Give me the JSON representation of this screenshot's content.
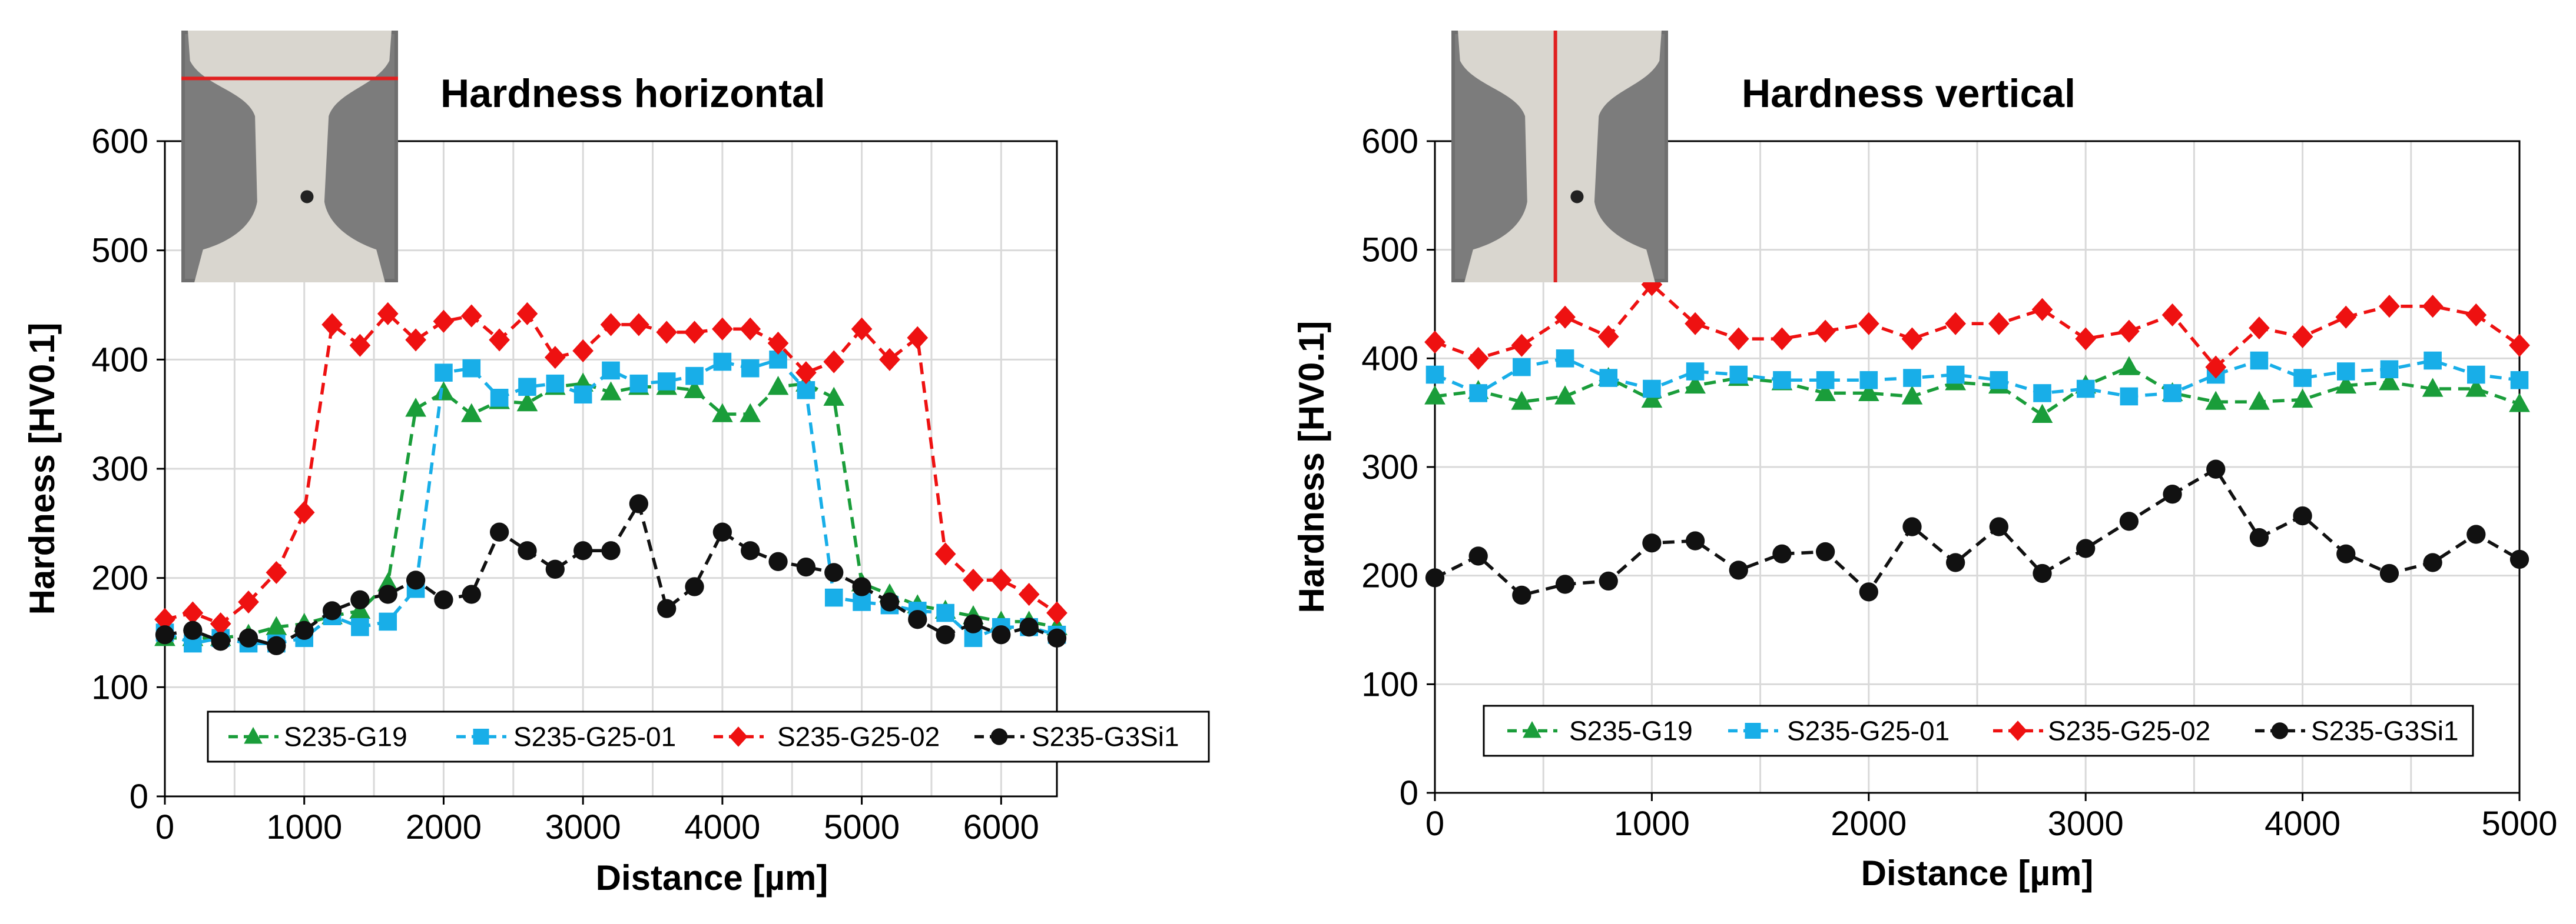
{
  "chart_data": [
    {
      "type": "line",
      "title": "Hardness horizontal",
      "xlabel": "Distance [µm]",
      "ylabel": "Hardness [HV0.1]",
      "xlim": [
        0,
        6400
      ],
      "ylim": [
        0,
        600
      ],
      "xticks": [
        0,
        1000,
        2000,
        3000,
        4000,
        5000,
        6000
      ],
      "yticks": [
        0,
        100,
        200,
        300,
        400,
        500,
        600
      ],
      "grid": true,
      "legend_position": "bottom",
      "inset": "weld macrograph with horizontal red measurement line",
      "x": [
        0,
        200,
        400,
        600,
        800,
        1000,
        1200,
        1400,
        1600,
        1800,
        2000,
        2200,
        2400,
        2600,
        2800,
        3000,
        3200,
        3400,
        3600,
        3800,
        4000,
        4200,
        4400,
        4600,
        4800,
        5000,
        5200,
        5400,
        5600,
        5800,
        6000,
        6200,
        6400
      ],
      "series": [
        {
          "name": "S235-G19",
          "color": "#1a9d3a",
          "marker": "triangle",
          "values": [
            145,
            145,
            145,
            148,
            155,
            158,
            165,
            170,
            195,
            355,
            370,
            350,
            362,
            360,
            375,
            378,
            370,
            375,
            375,
            372,
            350,
            350,
            375,
            378,
            365,
            195,
            185,
            175,
            170,
            165,
            160,
            160,
            155
          ]
        },
        {
          "name": "S235-G25-01",
          "color": "#18aee8",
          "marker": "square",
          "values": [
            150,
            140,
            145,
            140,
            140,
            145,
            165,
            155,
            160,
            190,
            388,
            392,
            365,
            375,
            378,
            368,
            390,
            378,
            380,
            385,
            398,
            392,
            400,
            372,
            182,
            178,
            175,
            170,
            168,
            145,
            155,
            155,
            148
          ]
        },
        {
          "name": "S235-G25-02",
          "color": "#ee1111",
          "marker": "diamond",
          "values": [
            162,
            168,
            158,
            178,
            205,
            260,
            432,
            413,
            442,
            418,
            435,
            440,
            418,
            442,
            402,
            408,
            432,
            432,
            425,
            425,
            428,
            428,
            415,
            388,
            398,
            428,
            400,
            420,
            222,
            198,
            198,
            185,
            168
          ]
        },
        {
          "name": "S235-G3Si1",
          "color": "#111111",
          "marker": "circle",
          "values": [
            148,
            152,
            142,
            145,
            138,
            152,
            170,
            180,
            185,
            198,
            180,
            185,
            242,
            225,
            208,
            225,
            225,
            268,
            172,
            192,
            242,
            225,
            215,
            210,
            205,
            192,
            178,
            162,
            148,
            158,
            148,
            155,
            145
          ]
        }
      ]
    },
    {
      "type": "line",
      "title": "Hardness vertical",
      "xlabel": "Distance [µm]",
      "ylabel": "Hardness [HV0.1]",
      "xlim": [
        0,
        5000
      ],
      "ylim": [
        0,
        600
      ],
      "xticks": [
        0,
        1000,
        2000,
        3000,
        4000,
        5000
      ],
      "yticks": [
        0,
        100,
        200,
        300,
        400,
        500,
        600
      ],
      "grid": true,
      "legend_position": "bottom",
      "inset": "weld macrograph with vertical red measurement line",
      "x": [
        0,
        200,
        400,
        600,
        800,
        1000,
        1200,
        1400,
        1600,
        1800,
        2000,
        2200,
        2400,
        2600,
        2800,
        3000,
        3200,
        3400,
        3600,
        3800,
        4000,
        4200,
        4400,
        4600,
        4800,
        5000
      ],
      "series": [
        {
          "name": "S235-G19",
          "color": "#1a9d3a",
          "marker": "triangle",
          "values": [
            365,
            370,
            360,
            365,
            382,
            362,
            375,
            382,
            378,
            368,
            368,
            365,
            378,
            375,
            348,
            375,
            392,
            368,
            360,
            360,
            362,
            375,
            378,
            372,
            372,
            358
          ]
        },
        {
          "name": "S235-G25-01",
          "color": "#18aee8",
          "marker": "square",
          "values": [
            385,
            368,
            392,
            400,
            382,
            372,
            388,
            385,
            380,
            380,
            380,
            382,
            385,
            380,
            368,
            372,
            365,
            368,
            385,
            398,
            382,
            388,
            390,
            398,
            385,
            380
          ]
        },
        {
          "name": "S235-G25-02",
          "color": "#ee1111",
          "marker": "diamond",
          "values": [
            415,
            400,
            412,
            438,
            420,
            468,
            432,
            418,
            418,
            425,
            432,
            418,
            432,
            432,
            445,
            418,
            425,
            440,
            392,
            428,
            420,
            438,
            448,
            448,
            440,
            412
          ]
        },
        {
          "name": "S235-G3Si1",
          "color": "#111111",
          "marker": "circle",
          "values": [
            198,
            218,
            182,
            192,
            195,
            230,
            232,
            205,
            220,
            222,
            185,
            245,
            212,
            245,
            202,
            225,
            250,
            275,
            298,
            235,
            255,
            220,
            202,
            212,
            238,
            215
          ]
        }
      ]
    }
  ]
}
